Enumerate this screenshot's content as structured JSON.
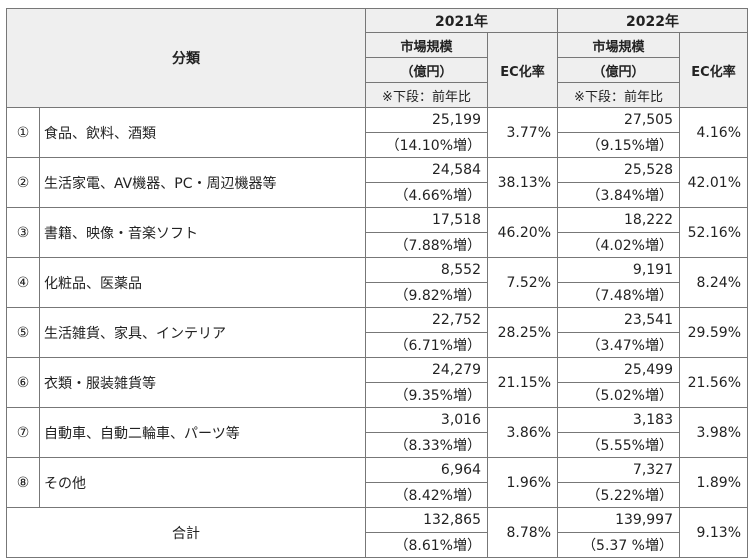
{
  "header": {
    "category": "分類",
    "year1": "2021年",
    "year2": "2022年",
    "market_size_line1": "市場規模",
    "market_size_line2": "（億円）",
    "market_size_note": "※下段：前年比",
    "ec_rate": "EC化率"
  },
  "rows": [
    {
      "num": "①",
      "name": "食品、飲料、酒類",
      "y2021": {
        "size": "25,199",
        "growth": "（14.10%増）",
        "ec": "3.77%"
      },
      "y2022": {
        "size": "27,505",
        "growth": "（9.15%増）",
        "ec": "4.16%"
      }
    },
    {
      "num": "②",
      "name": "生活家電、AV機器、PC・周辺機器等",
      "y2021": {
        "size": "24,584",
        "growth": "（4.66%増）",
        "ec": "38.13%"
      },
      "y2022": {
        "size": "25,528",
        "growth": "（3.84%増）",
        "ec": "42.01%"
      }
    },
    {
      "num": "③",
      "name": "書籍、映像・音楽ソフト",
      "y2021": {
        "size": "17,518",
        "growth": "（7.88%増）",
        "ec": "46.20%"
      },
      "y2022": {
        "size": "18,222",
        "growth": "（4.02%増）",
        "ec": "52.16%"
      }
    },
    {
      "num": "④",
      "name": "化粧品、医薬品",
      "y2021": {
        "size": "8,552",
        "growth": "（9.82%増）",
        "ec": "7.52%"
      },
      "y2022": {
        "size": "9,191",
        "growth": "（7.48%増）",
        "ec": "8.24%"
      }
    },
    {
      "num": "⑤",
      "name": "生活雑貨、家具、インテリア",
      "y2021": {
        "size": "22,752",
        "growth": "（6.71%増）",
        "ec": "28.25%"
      },
      "y2022": {
        "size": "23,541",
        "growth": "（3.47%増）",
        "ec": "29.59%"
      }
    },
    {
      "num": "⑥",
      "name": "衣類・服装雑貨等",
      "y2021": {
        "size": "24,279",
        "growth": "（9.35%増）",
        "ec": "21.15%"
      },
      "y2022": {
        "size": "25,499",
        "growth": "（5.02%増）",
        "ec": "21.56%"
      }
    },
    {
      "num": "⑦",
      "name": "自動車、自動二輪車、パーツ等",
      "y2021": {
        "size": "3,016",
        "growth": "（8.33%増）",
        "ec": "3.86%"
      },
      "y2022": {
        "size": "3,183",
        "growth": "（5.55%増）",
        "ec": "3.98%"
      }
    },
    {
      "num": "⑧",
      "name": "その他",
      "y2021": {
        "size": "6,964",
        "growth": "（8.42%増）",
        "ec": "1.96%"
      },
      "y2022": {
        "size": "7,327",
        "growth": "（5.22%増）",
        "ec": "1.89%"
      }
    }
  ],
  "total": {
    "label": "合計",
    "y2021": {
      "size": "132,865",
      "growth": "（8.61%増）",
      "ec": "8.78%"
    },
    "y2022": {
      "size": "139,997",
      "growth": "（5.37 %増）",
      "ec": "9.13%"
    }
  }
}
